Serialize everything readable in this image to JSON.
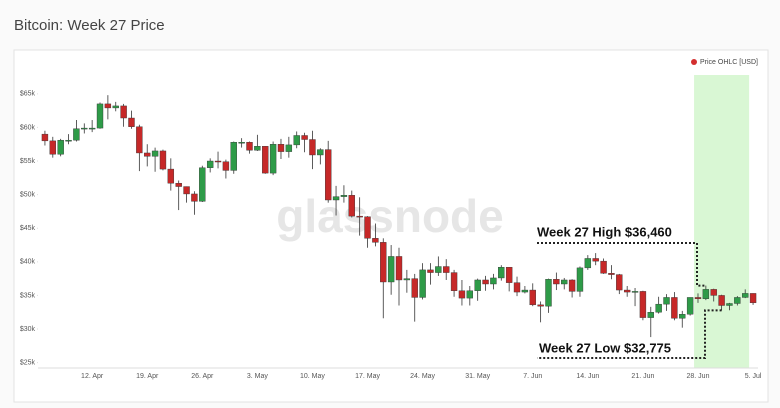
{
  "chart_data": {
    "type": "candlestick",
    "title": "Bitcoin: Week 27 Price",
    "watermark": "glassnode",
    "legend_position": "top-right",
    "categories": [
      null,
      null,
      null,
      null,
      null,
      null,
      "12. Apr",
      null,
      null,
      null,
      null,
      null,
      null,
      "19. Apr",
      null,
      null,
      null,
      null,
      null,
      null,
      "26. Apr",
      null,
      null,
      null,
      null,
      null,
      null,
      "3. May",
      null,
      null,
      null,
      null,
      null,
      null,
      "10. May",
      null,
      null,
      null,
      null,
      null,
      null,
      "17. May",
      null,
      null,
      null,
      null,
      null,
      null,
      "24. May",
      null,
      null,
      null,
      null,
      null,
      null,
      "31. May",
      null,
      null,
      null,
      null,
      null,
      null,
      "7. Jun",
      null,
      null,
      null,
      null,
      null,
      null,
      "14. Jun",
      null,
      null,
      null,
      null,
      null,
      null,
      "21. Jun",
      null,
      null,
      null,
      null,
      null,
      null,
      "28. Jun",
      null,
      null,
      null,
      null,
      null,
      null,
      "5. Jul"
    ],
    "series": [
      {
        "name": "Price OHLC [USD]",
        "color": "#d32f2f",
        "up_color": "#2e9b48",
        "down_color": "#c62828",
        "open": [
          59000,
          58000,
          56000,
          58100,
          58100,
          59800,
          59900,
          59900,
          63500,
          62900,
          63200,
          61400,
          60100,
          56200,
          55700,
          56500,
          53800,
          51700,
          51200,
          50100,
          49000,
          54000,
          55000,
          54900,
          53600,
          57800,
          57800,
          56600,
          57200,
          53200,
          57500,
          56400,
          57400,
          58800,
          58200,
          55900,
          56700,
          49200,
          49700,
          49900,
          46800,
          46700,
          43500,
          42900,
          37000,
          40800,
          37300,
          37500,
          34700,
          38800,
          38400,
          39300,
          38400,
          35700,
          34600,
          35700,
          37300,
          36700,
          37600,
          39200,
          36900,
          35500,
          35800,
          33600,
          33400,
          37400,
          36700,
          37300,
          35600,
          39100,
          40500,
          40100,
          38300,
          38100,
          35800,
          35500,
          35600,
          31700,
          32500,
          33700,
          34700,
          31600,
          32200,
          34700,
          34500,
          35900,
          35000,
          33500,
          33800,
          34700,
          35300
        ],
        "high": [
          59500,
          58600,
          58300,
          59000,
          61100,
          60600,
          61100,
          63700,
          64800,
          63800,
          63500,
          62500,
          60400,
          57500,
          57000,
          56700,
          55400,
          52100,
          51200,
          50500,
          54300,
          55400,
          56400,
          55200,
          57900,
          58400,
          57900,
          58900,
          57200,
          57900,
          58300,
          58600,
          59400,
          59200,
          59500,
          56900,
          58000,
          51300,
          51400,
          50600,
          49600,
          46800,
          45700,
          43500,
          42500,
          42100,
          38800,
          38200,
          39800,
          39800,
          40800,
          40400,
          38800,
          37300,
          36400,
          37500,
          37900,
          38200,
          39500,
          39200,
          37800,
          36400,
          36800,
          34100,
          37500,
          38400,
          37600,
          37400,
          39300,
          41000,
          41300,
          40500,
          39500,
          38200,
          36400,
          36100,
          35700,
          33300,
          34800,
          35200,
          35500,
          32700,
          34700,
          35300,
          36460,
          36000,
          35100,
          33900,
          34900,
          35900,
          35300
        ],
        "low": [
          57300,
          55500,
          55700,
          57500,
          57900,
          59100,
          59300,
          59800,
          61200,
          62400,
          60100,
          59800,
          53500,
          54200,
          53400,
          53600,
          50600,
          47700,
          48800,
          47000,
          48900,
          53300,
          53900,
          52400,
          53100,
          57000,
          56100,
          56500,
          53100,
          52900,
          55300,
          55500,
          56900,
          56300,
          53800,
          54500,
          48800,
          46900,
          48800,
          46600,
          43900,
          42100,
          42300,
          31600,
          35100,
          33500,
          35400,
          31100,
          34400,
          36600,
          37900,
          37300,
          34800,
          33500,
          33500,
          34200,
          35700,
          35900,
          37200,
          35600,
          34900,
          35300,
          33400,
          31000,
          32400,
          35800,
          35900,
          34700,
          34800,
          38800,
          39500,
          38200,
          37400,
          35200,
          34800,
          33400,
          31300,
          28800,
          32300,
          32700,
          31300,
          30200,
          32000,
          33900,
          34300,
          34100,
          32775,
          32800,
          33500,
          34600,
          33600
        ],
        "close": [
          58000,
          56000,
          58100,
          58100,
          59800,
          59900,
          59900,
          63500,
          62900,
          63200,
          61400,
          60100,
          56200,
          55700,
          56500,
          53800,
          51700,
          51200,
          50100,
          49000,
          54000,
          55000,
          54900,
          53600,
          57800,
          57800,
          56600,
          57200,
          53200,
          57500,
          56400,
          57400,
          58800,
          58200,
          55900,
          56700,
          49200,
          49700,
          49900,
          46800,
          46700,
          43500,
          42900,
          37000,
          40800,
          37300,
          37500,
          34700,
          38800,
          38400,
          39300,
          38400,
          35700,
          34600,
          35700,
          37300,
          36700,
          37600,
          39200,
          36900,
          35500,
          35800,
          33600,
          33400,
          37400,
          36700,
          37300,
          35600,
          39100,
          40500,
          40100,
          38300,
          38100,
          35800,
          35500,
          35600,
          31700,
          32500,
          33700,
          34700,
          31600,
          32200,
          34700,
          34500,
          35900,
          35000,
          33500,
          33800,
          34700,
          35300,
          33900
        ]
      }
    ],
    "ylim": [
      24200,
      67800
    ],
    "yticks": [
      {
        "value": 25000,
        "label": "$25k"
      },
      {
        "value": 30000,
        "label": "$30k"
      },
      {
        "value": 35000,
        "label": "$35k"
      },
      {
        "value": 40000,
        "label": "$40k"
      },
      {
        "value": 45000,
        "label": "$45k"
      },
      {
        "value": 50000,
        "label": "$50k"
      },
      {
        "value": 55000,
        "label": "$55k"
      },
      {
        "value": 60000,
        "label": "$60k"
      },
      {
        "value": 65000,
        "label": "$65k"
      }
    ],
    "grid": false,
    "highlight": {
      "from": 83,
      "to": 89,
      "color": "#d9f7d4"
    },
    "annotations": [
      {
        "text": "Week 27 High $36,460",
        "value": 36460,
        "index": 84
      },
      {
        "text": "Week 27 Low $32,775",
        "value": 32775,
        "index": 86
      }
    ]
  }
}
